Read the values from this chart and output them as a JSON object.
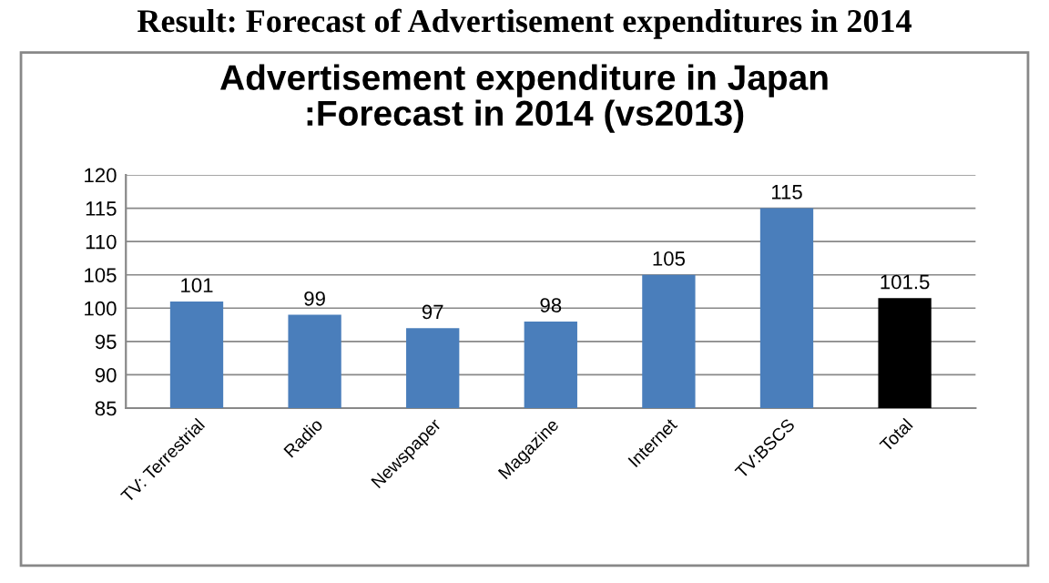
{
  "chart_data": {
    "type": "bar",
    "subtitle": "Result: Forecast of Advertisement expenditures in 2014",
    "title": "Advertisement expenditure in Japan\n:Forecast in 2014 (vs2013)",
    "categories": [
      "TV: Terrestrial",
      "Radio",
      "Newspaper",
      "Magazine",
      "Internet",
      "TV:BSCS",
      "Total"
    ],
    "values": [
      101,
      99,
      97,
      98,
      105,
      115,
      101.5
    ],
    "colors": [
      "#4a7ebb",
      "#4a7ebb",
      "#4a7ebb",
      "#4a7ebb",
      "#4a7ebb",
      "#4a7ebb",
      "#000000"
    ],
    "ylim": [
      85,
      120
    ],
    "yticks": [
      85,
      90,
      95,
      100,
      105,
      110,
      115,
      120
    ],
    "grid": "y",
    "data_labels": true
  }
}
